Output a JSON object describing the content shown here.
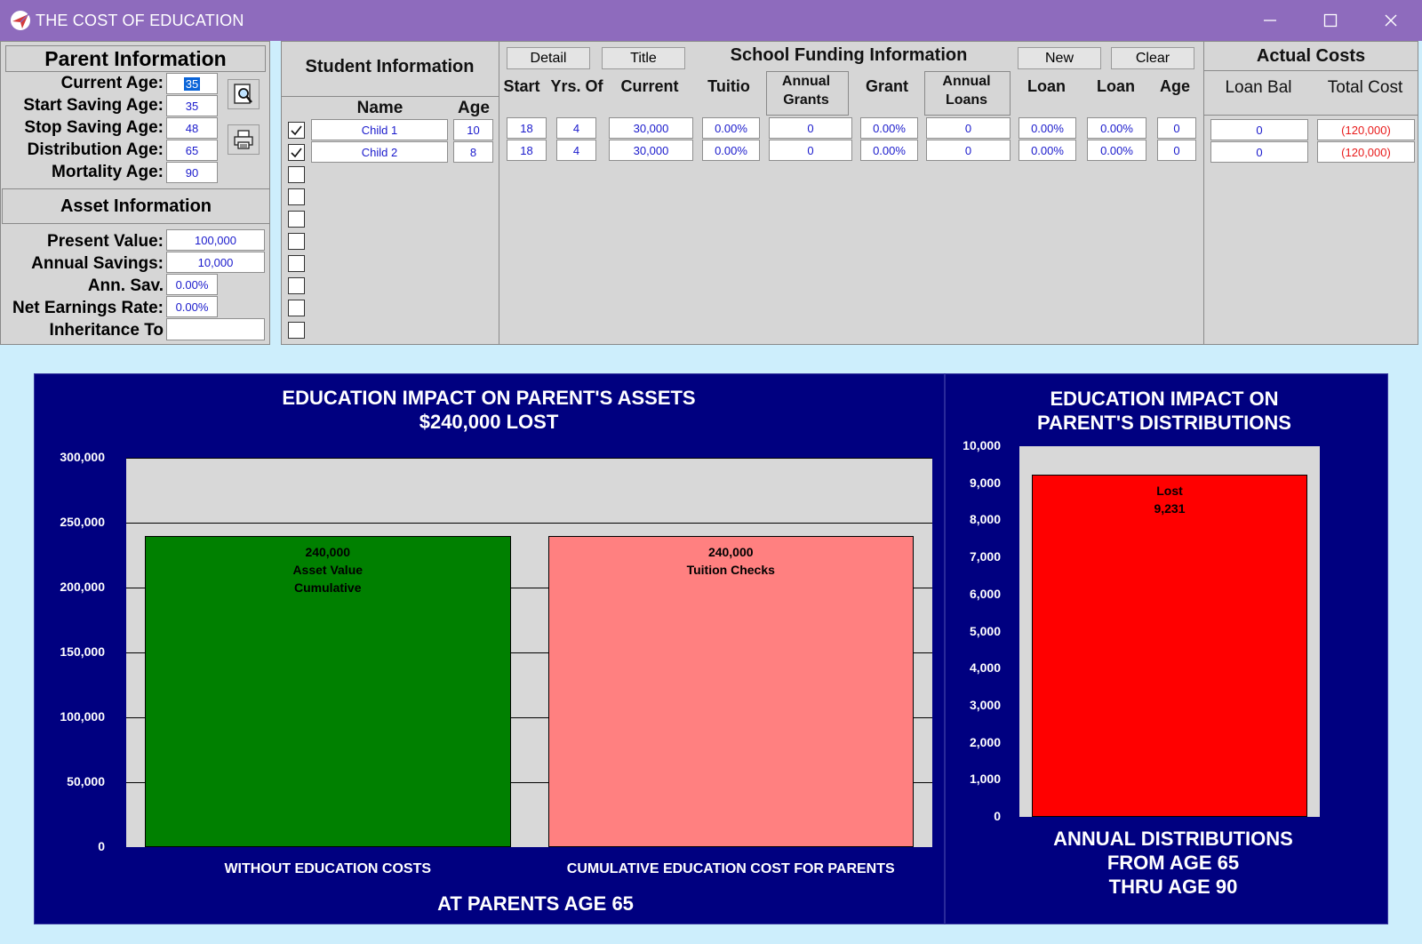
{
  "window": {
    "title": "THE COST OF EDUCATION",
    "controls": {
      "minimize": "—",
      "maximize": "☐",
      "close": "✕"
    }
  },
  "parent_info": {
    "header": "Parent Information",
    "current_age_label": "Current Age:",
    "current_age": "35",
    "start_saving_label": "Start Saving Age:",
    "start_saving_age": "35",
    "stop_saving_label": "Stop Saving Age:",
    "stop_saving_age": "48",
    "distribution_label": "Distribution Age:",
    "distribution_age": "65",
    "mortality_label": "Mortality Age:",
    "mortality_age": "90"
  },
  "asset_info": {
    "header": "Asset Information",
    "present_value_label": "Present Value:",
    "present_value": "100,000",
    "annual_savings_label": "Annual Savings:",
    "annual_savings": "10,000",
    "ann_sav_label": "Ann. Sav.",
    "ann_sav": "0.00%",
    "net_earnings_label": "Net Earnings Rate:",
    "net_earnings": "0.00%",
    "inheritance_label": "Inheritance To",
    "inheritance": ""
  },
  "student_info": {
    "header": "Student Information",
    "col_name": "Name",
    "col_age": "Age",
    "rows": [
      {
        "checked": true,
        "name": "Child 1",
        "age": "10"
      },
      {
        "checked": true,
        "name": "Child 2",
        "age": "8"
      }
    ],
    "empty_checkbox_count": 8
  },
  "school_funding": {
    "header": "School Funding Information",
    "buttons": {
      "detail": "Detail",
      "title": "Title",
      "new": "New",
      "clear": "Clear"
    },
    "columns": {
      "start": "Start",
      "yrs_of": "Yrs. Of",
      "current": "Current",
      "tuition": "Tuitio",
      "annual_grants": "Annual\nGrants",
      "grant": "Grant",
      "annual_loans": "Annual\nLoans",
      "loan1": "Loan",
      "loan2": "Loan",
      "age": "Age"
    },
    "rows": [
      {
        "start": "18",
        "yrs": "4",
        "current": "30,000",
        "tuition": "0.00%",
        "annual_grants": "0",
        "grant": "0.00%",
        "annual_loans": "0",
        "loan1": "0.00%",
        "loan2": "0.00%",
        "age": "0"
      },
      {
        "start": "18",
        "yrs": "4",
        "current": "30,000",
        "tuition": "0.00%",
        "annual_grants": "0",
        "grant": "0.00%",
        "annual_loans": "0",
        "loan1": "0.00%",
        "loan2": "0.00%",
        "age": "0"
      }
    ]
  },
  "actual_costs": {
    "header": "Actual Costs",
    "col_loan_bal": "Loan Bal",
    "col_total_cost": "Total Cost",
    "rows": [
      {
        "loan_bal": "0",
        "total_cost": "(120,000)"
      },
      {
        "loan_bal": "0",
        "total_cost": "(120,000)"
      }
    ]
  },
  "colors": {
    "titlebar": "#8e6bbd",
    "chart_background": "#000080",
    "plot_background": "#d8d8d8",
    "asset_bar": "#008000",
    "tuition_bar": "#ff8080",
    "lost_bar": "#ff0000",
    "negative_value": "#e81b1b",
    "input_value": "#1a1acc"
  },
  "chart_data": [
    {
      "type": "bar",
      "title": "EDUCATION IMPACT ON PARENT'S ASSETS",
      "subtitle": "$240,000 LOST",
      "categories": [
        "WITHOUT EDUCATION COSTS",
        "CUMULATIVE EDUCATION COST FOR PARENTS"
      ],
      "values": [
        240000,
        240000
      ],
      "bar_labels": [
        [
          "240,000",
          "Asset Value",
          "Cumulative"
        ],
        [
          "240,000",
          "Tuition Checks"
        ]
      ],
      "bar_colors": [
        "#008000",
        "#ff8080"
      ],
      "xlabel": "AT PARENTS AGE 65",
      "ylim": [
        0,
        300000
      ],
      "yticks": [
        0,
        50000,
        100000,
        150000,
        200000,
        250000,
        300000
      ],
      "ytick_labels": [
        "0",
        "50,000",
        "100,000",
        "150,000",
        "200,000",
        "250,000",
        "300,000"
      ],
      "grid": true
    },
    {
      "type": "bar",
      "title": "EDUCATION IMPACT ON\nPARENT'S DISTRIBUTIONS",
      "categories": [
        "Lost"
      ],
      "values": [
        9231
      ],
      "bar_labels": [
        [
          "Lost",
          "9,231"
        ]
      ],
      "bar_colors": [
        "#ff0000"
      ],
      "xlabel": "ANNUAL DISTRIBUTIONS\nFROM AGE 65\nTHRU AGE 90",
      "ylim": [
        0,
        10000
      ],
      "yticks": [
        0,
        1000,
        2000,
        3000,
        4000,
        5000,
        6000,
        7000,
        8000,
        9000,
        10000
      ],
      "ytick_labels": [
        "0",
        "1,000",
        "2,000",
        "3,000",
        "4,000",
        "5,000",
        "6,000",
        "7,000",
        "8,000",
        "9,000",
        "10,000"
      ],
      "grid": false
    }
  ]
}
